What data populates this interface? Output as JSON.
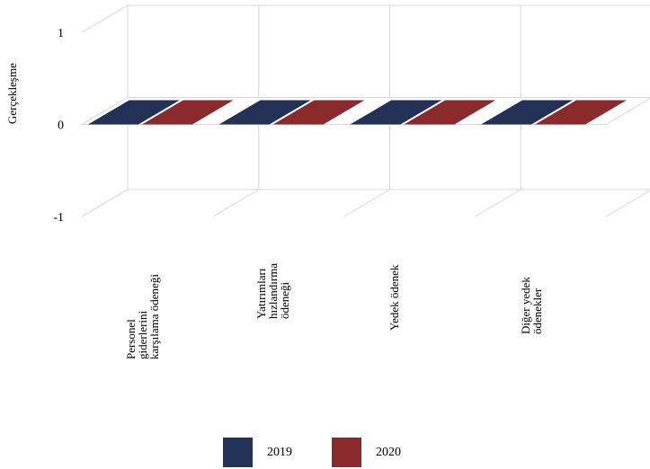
{
  "chart_data": {
    "type": "bar",
    "ylabel": "Gerçekleşme",
    "xlabel": "",
    "ylim": [
      -1,
      1
    ],
    "yticks": [
      "1",
      "0",
      "-1"
    ],
    "categories": [
      "Personel\ngiderlerini\nkarşılama ödeneği",
      "Yatırımları\nhızlandırma\nödeneği",
      "Yedek ödenek",
      "Diğer yedek\nödenekler"
    ],
    "series": [
      {
        "name": "2019",
        "color": "#243156",
        "values": [
          0,
          0,
          0,
          0
        ]
      },
      {
        "name": "2020",
        "color": "#8b2a2c",
        "values": [
          0,
          0,
          0,
          0
        ]
      }
    ],
    "grid": true,
    "legend_position": "bottom"
  }
}
